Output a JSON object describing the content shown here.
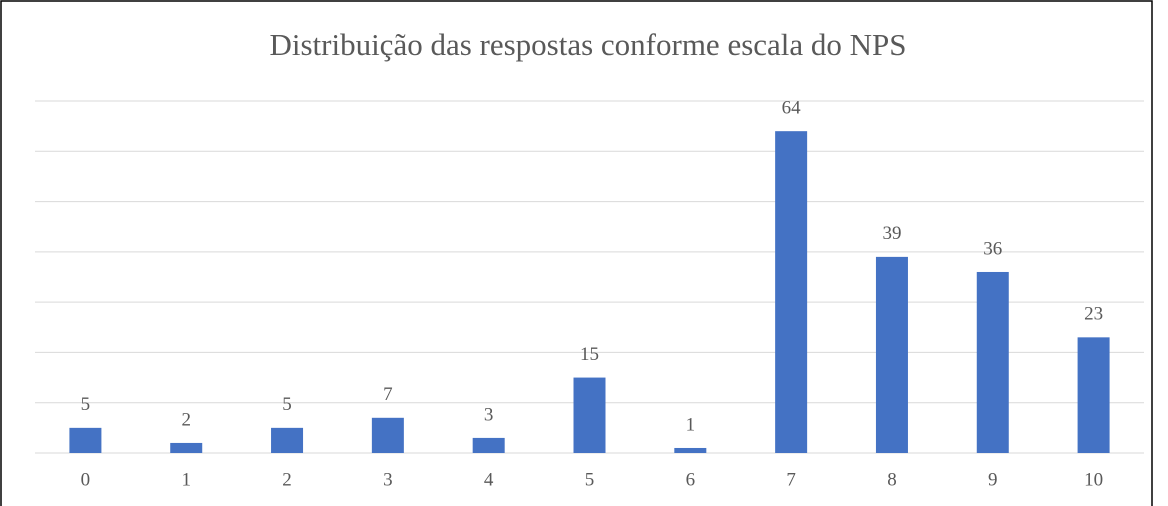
{
  "chart_data": {
    "type": "bar",
    "title": "Distribuição das respostas conforme escala do NPS",
    "categories": [
      "0",
      "1",
      "2",
      "3",
      "4",
      "5",
      "6",
      "7",
      "8",
      "9",
      "10"
    ],
    "values": [
      5,
      2,
      5,
      7,
      3,
      15,
      1,
      64,
      39,
      36,
      23
    ],
    "color": "#4472c4",
    "ylim": [
      0,
      70
    ],
    "yticks": [
      0,
      10,
      20,
      30,
      40,
      50,
      60,
      70
    ],
    "grid": true,
    "ytick_labels": false
  }
}
